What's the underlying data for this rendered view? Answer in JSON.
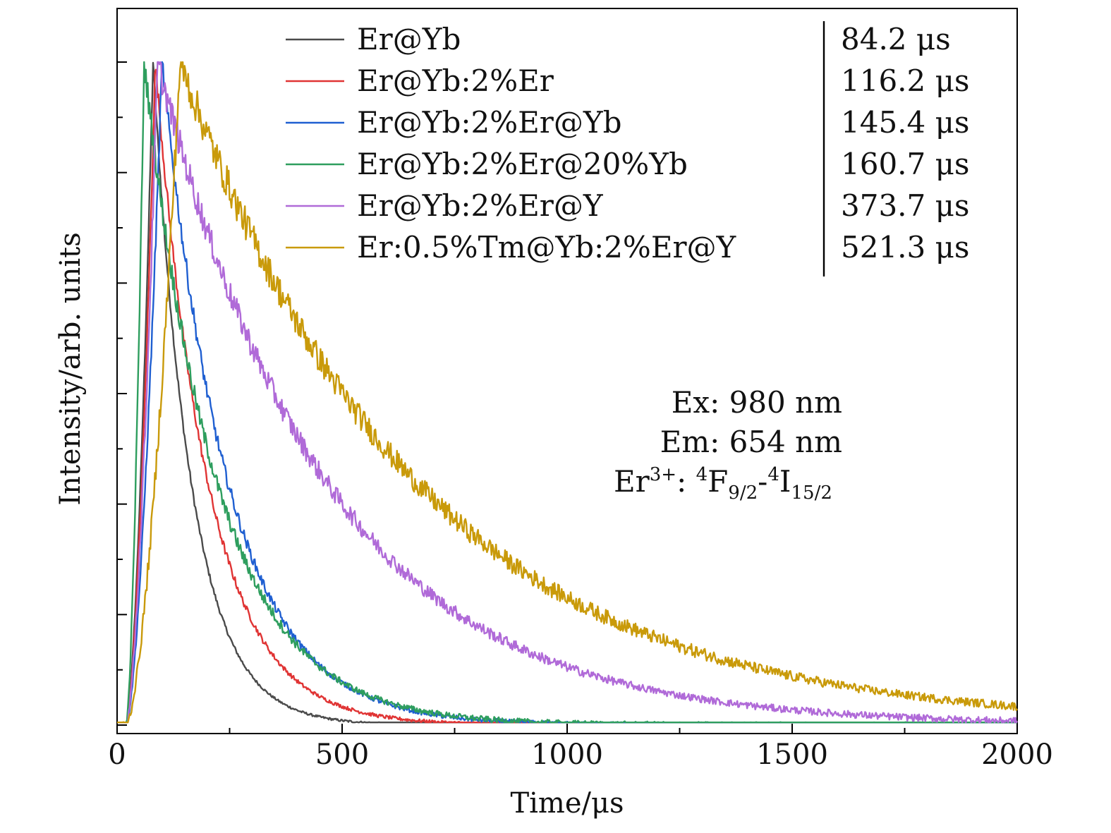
{
  "chart_data": {
    "type": "line",
    "title": "",
    "xlabel": "Time/μs",
    "ylabel": "Intensity/arb. units",
    "xlim": [
      0,
      2000
    ],
    "ylim": [
      0,
      1.0
    ],
    "x_ticks": [
      "0",
      "500",
      "1000",
      "1500",
      "2000"
    ],
    "grid": false,
    "legend_position": "top-center",
    "series": [
      {
        "name": "Er@Yb",
        "lifetime": "84.2 μs",
        "color": "#4a4a4a",
        "tau": 84.2,
        "peak_x": 80
      },
      {
        "name": "Er@Yb:2%Er",
        "lifetime": "116.2 μs",
        "color": "#e03434",
        "tau": 116.2,
        "peak_x": 85
      },
      {
        "name": "Er@Yb:2%Er@Yb",
        "lifetime": "145.4 μs",
        "color": "#1f5fd1",
        "tau": 145.4,
        "peak_x": 100
      },
      {
        "name": "Er@Yb:2%Er@20%Yb",
        "lifetime": "160.7 μs",
        "color": "#2e9e5e",
        "tau": 160.7,
        "peak_x": 60
      },
      {
        "name": "Er@Yb:2%Er@Y",
        "lifetime": "373.7 μs",
        "color": "#b06ad8",
        "tau": 373.7,
        "peak_x": 90
      },
      {
        "name": "Er:0.5%Tm@Yb:2%Er@Y",
        "lifetime": "521.3 μs",
        "color": "#c99a0a",
        "tau": 521.3,
        "peak_x": 140
      }
    ],
    "annotations": {
      "ex": "Ex: 980 nm",
      "em": "Em: 654 nm",
      "transition_prefix": "Er",
      "transition_sup1": "3+",
      "transition_colon": ": ",
      "transition_sup2": "4",
      "transition_f": "F",
      "transition_sub1": "9/2",
      "transition_dash": "-",
      "transition_sup3": "4",
      "transition_i": "I",
      "transition_sub2": "15/2"
    }
  }
}
